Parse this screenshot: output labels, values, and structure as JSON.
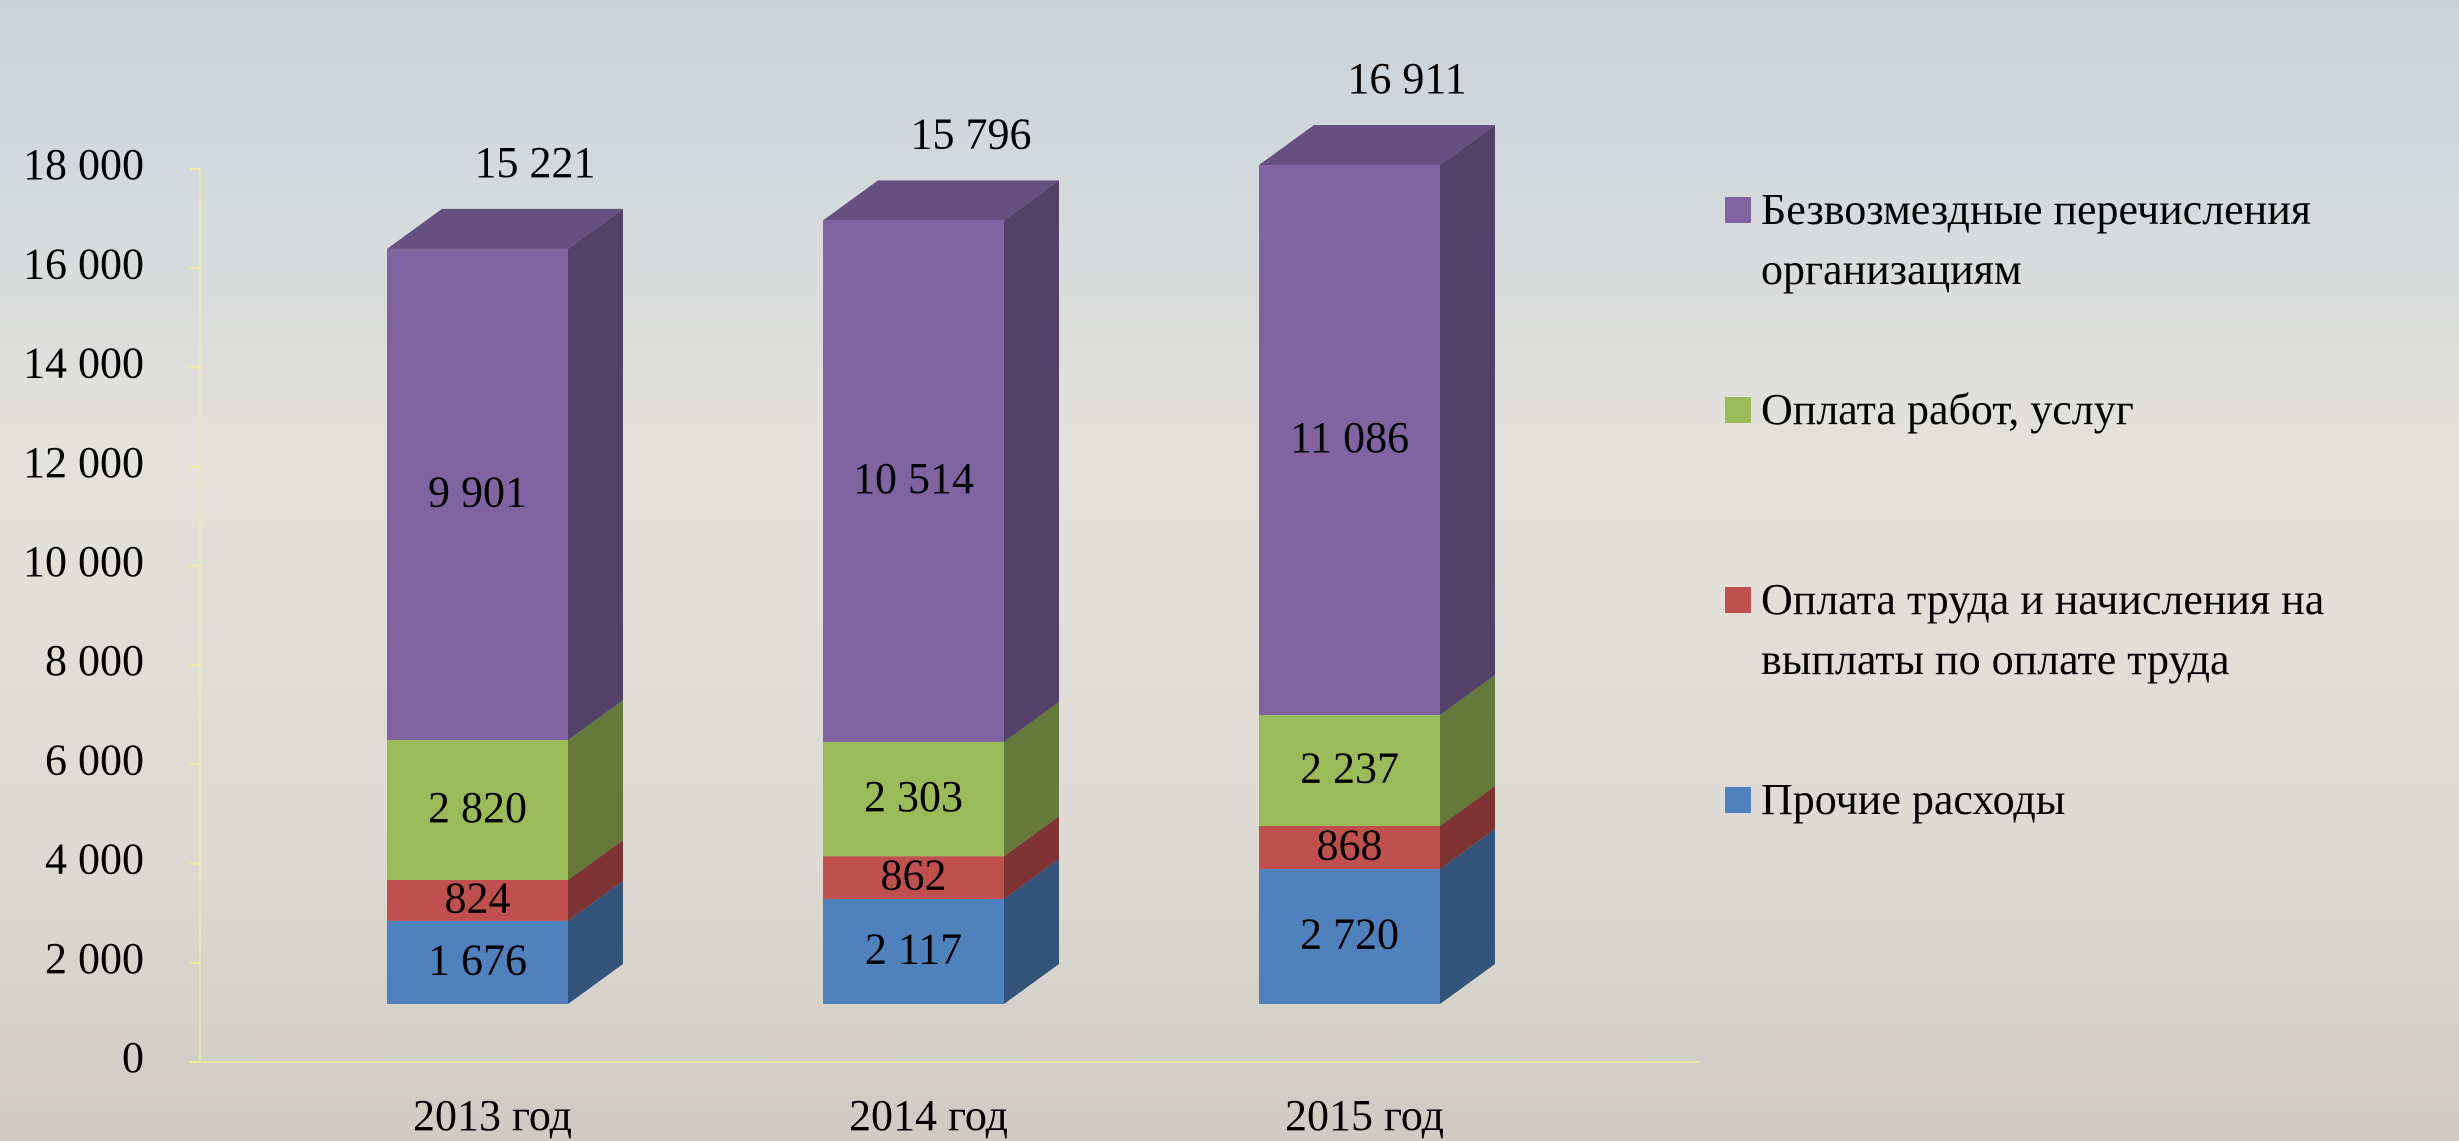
{
  "chart_data": {
    "type": "bar3d_stacked",
    "categories": [
      "2013 год",
      "2014 год",
      "2015 год"
    ],
    "series": [
      {
        "name": "Прочие расходы",
        "color": "#4f81bd",
        "values": [
          1676,
          2117,
          2720
        ],
        "value_labels": [
          "1 676",
          "2 117",
          "2 720"
        ]
      },
      {
        "name": "Оплата труда и начисления на выплаты по оплате труда",
        "color": "#c0504d",
        "values": [
          824,
          862,
          868
        ],
        "value_labels": [
          "824",
          "862",
          "868"
        ]
      },
      {
        "name": "Оплата работ, услуг",
        "color": "#9bbb59",
        "values": [
          2820,
          2303,
          2237
        ],
        "value_labels": [
          "2 820",
          "2 303",
          "2 237"
        ]
      },
      {
        "name": "Безвозмездные перечисления организациям",
        "color": "#8064a2",
        "values": [
          9901,
          10514,
          11086
        ],
        "value_labels": [
          "9 901",
          "10 514",
          "11 086"
        ]
      }
    ],
    "totals": [
      15221,
      15796,
      16911
    ],
    "total_labels": [
      "15 221",
      "15 796",
      "16 911"
    ],
    "ylim": [
      0,
      18000
    ],
    "yticks": [
      0,
      {
        "value": 2000,
        "label": "2 000"
      },
      {
        "value": 4000,
        "label": "4 000"
      },
      {
        "value": 6000,
        "label": "6 000"
      },
      {
        "value": 8000,
        "label": "8 000"
      },
      {
        "value": 10000,
        "label": "10 000"
      },
      {
        "value": 12000,
        "label": "12 000"
      },
      {
        "value": 14000,
        "label": "14 000"
      },
      {
        "value": 16000,
        "label": "16 000"
      },
      {
        "value": 18000,
        "label": "18 000"
      }
    ],
    "legend": "right"
  }
}
